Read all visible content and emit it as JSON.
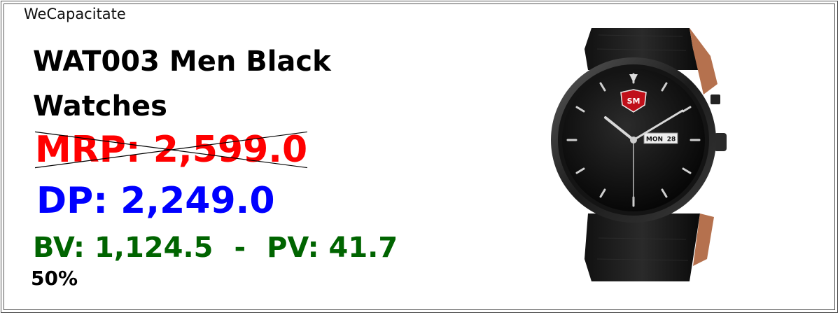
{
  "brand": "WeCapacitate",
  "product": {
    "title": "WAT003 Men Black Watches",
    "mrp": "MRP: 2,599.0",
    "dp": "DP: 2,249.0",
    "bv": "BV: 1,124.5",
    "separator": "-",
    "pv": "PV: 41.7",
    "discount": "50%",
    "image": {
      "logo_text": "SM",
      "day": "MON",
      "date": "28"
    }
  },
  "colors": {
    "mrp": "#ff0000",
    "dp": "#0000ff",
    "bvpv": "#006400"
  }
}
